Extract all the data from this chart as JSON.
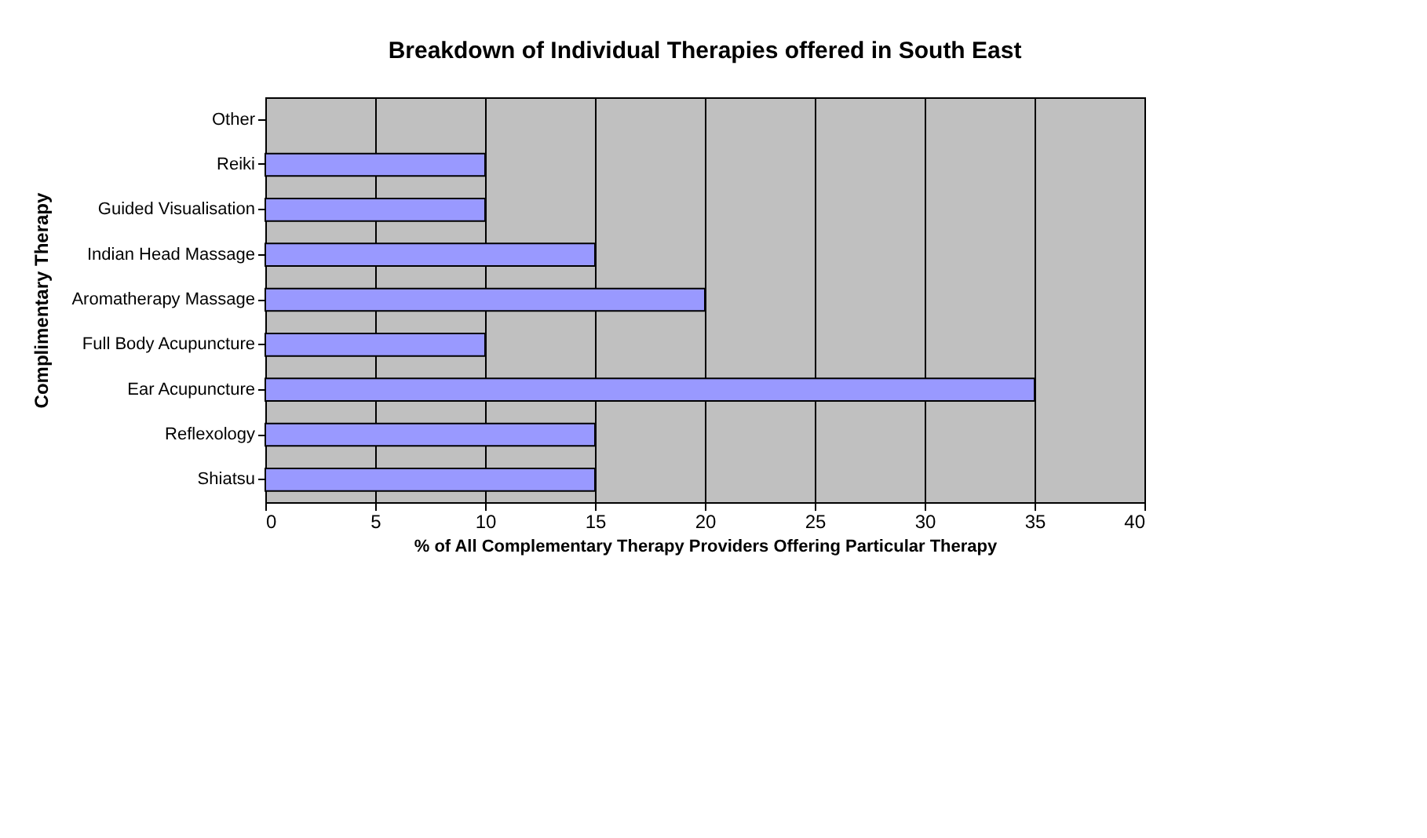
{
  "chart_data": {
    "type": "bar",
    "orientation": "horizontal",
    "title": "Breakdown of Individual Therapies offered in South East",
    "xlabel": "% of All Complementary Therapy Providers Offering Particular Therapy",
    "ylabel": "Complimentary Therapy",
    "categories": [
      "Other",
      "Reiki",
      "Guided Visualisation",
      "Indian Head Massage",
      "Aromatherapy Massage",
      "Full Body Acupuncture",
      "Ear Acupuncture",
      "Reflexology",
      "Shiatsu"
    ],
    "values": [
      null,
      10,
      10,
      15,
      20,
      10,
      35,
      15,
      15
    ],
    "color": "#9999ff",
    "xlim": [
      0,
      40
    ],
    "xticks": [
      0,
      5,
      10,
      15,
      20,
      25,
      30,
      35,
      40
    ],
    "grid": "x"
  }
}
